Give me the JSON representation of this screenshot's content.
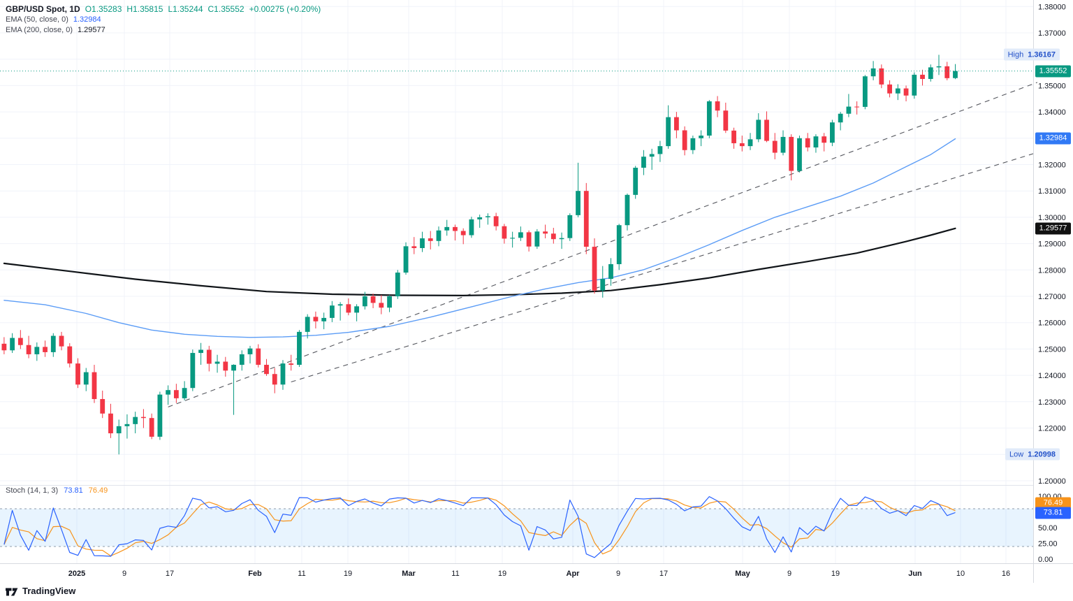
{
  "colors": {
    "up": "#089981",
    "down": "#f23645",
    "grid": "#f0f3fa",
    "axis_text": "#131722",
    "trend": "#55575e",
    "band_fill": "rgba(33,150,243,0.10)",
    "band_line": "#8f9bab",
    "ema50_badge": "#3179f5",
    "ema200_badge": "#111111",
    "border": "#d7dae0",
    "divider": "#e0e3eb"
  },
  "legend": {
    "symbol": "GBP/USD Spot, 1D",
    "open": "O1.35283",
    "high": "H1.35815",
    "low": "L1.35244",
    "close": "C1.35552",
    "change": "+0.00275 (+0.20%)",
    "ema50_name": "EMA (50, close, 0)",
    "ema50_value": "1.32984",
    "ema200_name": "EMA (200, close, 0)",
    "ema200_value": "1.29577"
  },
  "stoch_legend": {
    "name": "Stoch (14, 1, 3)",
    "k": "73.81",
    "d": "76.49"
  },
  "badges": {
    "current": "1.35552",
    "ema50": "1.32984",
    "ema200": "1.29577",
    "high_label": "High",
    "high_value": "1.36167",
    "low_label": "Low",
    "low_value": "1.20998",
    "stoch_k": "73.81",
    "stoch_d": "76.49"
  },
  "watermark": {
    "text": "TradingView"
  },
  "chart_data": {
    "type": "candlestick",
    "symbol": "GBP/USD Spot",
    "timeframe": "1D",
    "ohlc": {
      "open": 1.35283,
      "high": 1.35815,
      "low": 1.35244,
      "close": 1.35552,
      "change": 0.00275,
      "change_pct": 0.2
    },
    "price_axis": {
      "min": 1.2,
      "max": 1.38,
      "tick": 0.01,
      "labels": [
        "1.38000",
        "1.37000",
        "1.35000",
        "1.34000",
        "1.32000",
        "1.31000",
        "1.30000",
        "1.29000",
        "1.28000",
        "1.27000",
        "1.26000",
        "1.25000",
        "1.24000",
        "1.23000",
        "1.22000",
        "1.20000"
      ]
    },
    "time_axis": [
      [
        "2025",
        110
      ],
      [
        "9",
        178
      ],
      [
        "17",
        243
      ],
      [
        "Feb",
        365
      ],
      [
        "11",
        432
      ],
      [
        "19",
        498
      ],
      [
        "Mar",
        585
      ],
      [
        "11",
        652
      ],
      [
        "19",
        719
      ],
      [
        "Apr",
        820
      ],
      [
        "9",
        885
      ],
      [
        "17",
        950
      ],
      [
        "May",
        1063
      ],
      [
        "9",
        1130
      ],
      [
        "19",
        1196
      ],
      [
        "Jun",
        1310
      ],
      [
        "10",
        1375
      ],
      [
        "16",
        1440
      ]
    ],
    "candles": [
      [
        1.252,
        1.2545,
        1.248,
        1.2495
      ],
      [
        1.2495,
        1.256,
        1.2485,
        1.2542
      ],
      [
        1.2542,
        1.2572,
        1.25,
        1.2515
      ],
      [
        1.2515,
        1.255,
        1.2465,
        1.248
      ],
      [
        1.248,
        1.2525,
        1.2455,
        1.2508
      ],
      [
        1.2508,
        1.2532,
        1.247,
        1.2488
      ],
      [
        1.2488,
        1.256,
        1.247,
        1.255
      ],
      [
        1.255,
        1.2565,
        1.2495,
        1.251
      ],
      [
        1.251,
        1.2522,
        1.243,
        1.2445
      ],
      [
        1.2445,
        1.2465,
        1.2352,
        1.2365
      ],
      [
        1.2365,
        1.2428,
        1.234,
        1.2412
      ],
      [
        1.2412,
        1.244,
        1.2295,
        1.231
      ],
      [
        1.231,
        1.2342,
        1.2238,
        1.2255
      ],
      [
        1.2255,
        1.2292,
        1.2162,
        1.218
      ],
      [
        1.218,
        1.2232,
        1.20998,
        1.2207
      ],
      [
        1.2207,
        1.2252,
        1.216,
        1.2215
      ],
      [
        1.2215,
        1.2262,
        1.218,
        1.2242
      ],
      [
        1.2242,
        1.2272,
        1.22,
        1.2238
      ],
      [
        1.2238,
        1.2255,
        1.2158,
        1.2167
      ],
      [
        1.2167,
        1.2338,
        1.2155,
        1.2327
      ],
      [
        1.2327,
        1.2362,
        1.2288,
        1.2344
      ],
      [
        1.2344,
        1.2368,
        1.2295,
        1.2313
      ],
      [
        1.2313,
        1.2378,
        1.2305,
        1.2352
      ],
      [
        1.2352,
        1.2498,
        1.234,
        1.2485
      ],
      [
        1.2485,
        1.2523,
        1.244,
        1.2497
      ],
      [
        1.2497,
        1.2512,
        1.2415,
        1.2444
      ],
      [
        1.2444,
        1.2478,
        1.241,
        1.2452
      ],
      [
        1.2452,
        1.247,
        1.2395,
        1.2418
      ],
      [
        1.2418,
        1.2442,
        1.225,
        1.244
      ],
      [
        1.244,
        1.2495,
        1.2418,
        1.248
      ],
      [
        1.248,
        1.2512,
        1.2445,
        1.2502
      ],
      [
        1.2502,
        1.2518,
        1.243,
        1.244
      ],
      [
        1.244,
        1.2462,
        1.2398,
        1.2405
      ],
      [
        1.2405,
        1.2428,
        1.2332,
        1.2365
      ],
      [
        1.2365,
        1.2458,
        1.2345,
        1.2445
      ],
      [
        1.2445,
        1.2478,
        1.2418,
        1.244
      ],
      [
        1.244,
        1.2572,
        1.2432,
        1.2565
      ],
      [
        1.2565,
        1.2632,
        1.254,
        1.2622
      ],
      [
        1.2622,
        1.2642,
        1.2578,
        1.2605
      ],
      [
        1.2605,
        1.2638,
        1.2575,
        1.2618
      ],
      [
        1.2618,
        1.2682,
        1.2602,
        1.2665
      ],
      [
        1.2665,
        1.2678,
        1.2608,
        1.267
      ],
      [
        1.267,
        1.2692,
        1.2628,
        1.2638
      ],
      [
        1.2638,
        1.267,
        1.2605,
        1.2662
      ],
      [
        1.2662,
        1.2717,
        1.265,
        1.27
      ],
      [
        1.27,
        1.271,
        1.2655,
        1.2675
      ],
      [
        1.2675,
        1.2705,
        1.2632,
        1.2657
      ],
      [
        1.2657,
        1.2705,
        1.264,
        1.27
      ],
      [
        1.27,
        1.28,
        1.269,
        1.279
      ],
      [
        1.279,
        1.2905,
        1.2782,
        1.289
      ],
      [
        1.289,
        1.2925,
        1.286,
        1.2883
      ],
      [
        1.2883,
        1.2945,
        1.2868,
        1.292
      ],
      [
        1.292,
        1.2948,
        1.2878,
        1.291
      ],
      [
        1.291,
        1.2965,
        1.289,
        1.295
      ],
      [
        1.295,
        1.299,
        1.293,
        1.2963
      ],
      [
        1.2963,
        1.2972,
        1.2912,
        1.2948
      ],
      [
        1.2948,
        1.2958,
        1.2898,
        1.2932
      ],
      [
        1.2932,
        1.3002,
        1.2922,
        1.2992
      ],
      [
        1.2992,
        1.301,
        1.296,
        1.3
      ],
      [
        1.3,
        1.3015,
        1.2972,
        1.3004
      ],
      [
        1.3004,
        1.3017,
        1.295,
        1.2966
      ],
      [
        1.2966,
        1.2975,
        1.29,
        1.2919
      ],
      [
        1.2919,
        1.2945,
        1.2885,
        1.2922
      ],
      [
        1.2922,
        1.2965,
        1.291,
        1.2943
      ],
      [
        1.2943,
        1.295,
        1.287,
        1.2889
      ],
      [
        1.2889,
        1.2955,
        1.288,
        1.2946
      ],
      [
        1.2946,
        1.2972,
        1.292,
        1.2938
      ],
      [
        1.2938,
        1.296,
        1.29,
        1.2917
      ],
      [
        1.2917,
        1.2942,
        1.288,
        1.2921
      ],
      [
        1.2921,
        1.3015,
        1.291,
        1.3008
      ],
      [
        1.3008,
        1.3207,
        1.3,
        1.31
      ],
      [
        1.31,
        1.313,
        1.286,
        1.2888
      ],
      [
        1.2888,
        1.292,
        1.271,
        1.2722
      ],
      [
        1.2722,
        1.2815,
        1.2695,
        1.2766
      ],
      [
        1.2766,
        1.2845,
        1.274,
        1.2822
      ],
      [
        1.2822,
        1.2975,
        1.28,
        1.297
      ],
      [
        1.297,
        1.309,
        1.295,
        1.3085
      ],
      [
        1.3085,
        1.3195,
        1.307,
        1.3188
      ],
      [
        1.3188,
        1.3255,
        1.316,
        1.323
      ],
      [
        1.323,
        1.326,
        1.318,
        1.324
      ],
      [
        1.324,
        1.329,
        1.321,
        1.327
      ],
      [
        1.327,
        1.3425,
        1.326,
        1.338
      ],
      [
        1.338,
        1.34,
        1.33,
        1.333
      ],
      [
        1.333,
        1.3345,
        1.3235,
        1.3255
      ],
      [
        1.3255,
        1.331,
        1.324,
        1.33
      ],
      [
        1.33,
        1.333,
        1.327,
        1.331
      ],
      [
        1.331,
        1.3445,
        1.33,
        1.344
      ],
      [
        1.344,
        1.346,
        1.338,
        1.3405
      ],
      [
        1.3405,
        1.3435,
        1.332,
        1.3329
      ],
      [
        1.3329,
        1.334,
        1.326,
        1.3281
      ],
      [
        1.3281,
        1.331,
        1.325,
        1.327
      ],
      [
        1.327,
        1.332,
        1.3255,
        1.3296
      ],
      [
        1.3296,
        1.3395,
        1.3285,
        1.337
      ],
      [
        1.337,
        1.3402,
        1.3285,
        1.329
      ],
      [
        1.329,
        1.332,
        1.322,
        1.3245
      ],
      [
        1.3245,
        1.333,
        1.3235,
        1.3305
      ],
      [
        1.3305,
        1.3315,
        1.314,
        1.3176
      ],
      [
        1.3176,
        1.331,
        1.317,
        1.33
      ],
      [
        1.33,
        1.332,
        1.325,
        1.3265
      ],
      [
        1.3265,
        1.3315,
        1.3245,
        1.3307
      ],
      [
        1.3307,
        1.332,
        1.325,
        1.3283
      ],
      [
        1.3283,
        1.337,
        1.327,
        1.336
      ],
      [
        1.336,
        1.34,
        1.333,
        1.3393
      ],
      [
        1.3393,
        1.3468,
        1.338,
        1.342
      ],
      [
        1.342,
        1.344,
        1.339,
        1.3419
      ],
      [
        1.3419,
        1.354,
        1.341,
        1.3535
      ],
      [
        1.3535,
        1.3593,
        1.352,
        1.3565
      ],
      [
        1.3565,
        1.358,
        1.349,
        1.3504
      ],
      [
        1.3504,
        1.352,
        1.3455,
        1.347
      ],
      [
        1.347,
        1.3505,
        1.3445,
        1.3489
      ],
      [
        1.3489,
        1.35,
        1.344,
        1.3462
      ],
      [
        1.3462,
        1.355,
        1.345,
        1.3541
      ],
      [
        1.3541,
        1.356,
        1.35,
        1.3525
      ],
      [
        1.3525,
        1.358,
        1.3515,
        1.3569
      ],
      [
        1.3569,
        1.36167,
        1.354,
        1.3573
      ],
      [
        1.3573,
        1.359,
        1.352,
        1.3528
      ],
      [
        1.35283,
        1.35815,
        1.35244,
        1.35552
      ]
    ],
    "overlays": {
      "current_price": 1.35552,
      "high": 1.36167,
      "low": 1.20998,
      "ema50": {
        "color": "#5b9cf6",
        "value": 1.32984,
        "points": [
          [
            0,
            1.2685
          ],
          [
            5,
            1.2668
          ],
          [
            10,
            1.2635
          ],
          [
            14,
            1.26
          ],
          [
            18,
            1.2572
          ],
          [
            22,
            1.2556
          ],
          [
            26,
            1.2548
          ],
          [
            30,
            1.2544
          ],
          [
            34,
            1.2546
          ],
          [
            38,
            1.2552
          ],
          [
            42,
            1.2563
          ],
          [
            47,
            1.2586
          ],
          [
            52,
            1.2621
          ],
          [
            57,
            1.266
          ],
          [
            62,
            1.27
          ],
          [
            66,
            1.2728
          ],
          [
            70,
            1.2752
          ],
          [
            74,
            1.277
          ],
          [
            78,
            1.2801
          ],
          [
            82,
            1.2846
          ],
          [
            86,
            1.2896
          ],
          [
            90,
            1.295
          ],
          [
            94,
            1.3
          ],
          [
            98,
            1.304
          ],
          [
            102,
            1.308
          ],
          [
            106,
            1.313
          ],
          [
            110,
            1.3192
          ],
          [
            113,
            1.3238
          ],
          [
            116,
            1.3298
          ]
        ]
      },
      "ema200": {
        "color": "#101418",
        "value": 1.29577,
        "points": [
          [
            0,
            1.2825
          ],
          [
            8,
            1.2795
          ],
          [
            16,
            1.2765
          ],
          [
            24,
            1.274
          ],
          [
            32,
            1.2718
          ],
          [
            40,
            1.2708
          ],
          [
            48,
            1.2704
          ],
          [
            56,
            1.2703
          ],
          [
            62,
            1.2706
          ],
          [
            68,
            1.2712
          ],
          [
            74,
            1.2722
          ],
          [
            80,
            1.2744
          ],
          [
            86,
            1.277
          ],
          [
            92,
            1.2802
          ],
          [
            98,
            1.2832
          ],
          [
            104,
            1.2864
          ],
          [
            110,
            1.2908
          ],
          [
            113,
            1.2932
          ],
          [
            116,
            1.29577
          ]
        ]
      },
      "trendlines": [
        {
          "from": [
            20,
            1.228
          ],
          "to": [
            126,
            1.3512
          ]
        },
        {
          "from": [
            35,
            1.2375
          ],
          "to": [
            126,
            1.3246
          ]
        }
      ]
    },
    "stochastic": {
      "params": "(14, 1, 3)",
      "k": 73.81,
      "d": 76.49,
      "k_color": "#2962ff",
      "d_color": "#f7931a",
      "bands": [
        80,
        20
      ],
      "axis_labels": [
        "100.00",
        "50.00",
        "25.00",
        "0.00"
      ]
    }
  }
}
